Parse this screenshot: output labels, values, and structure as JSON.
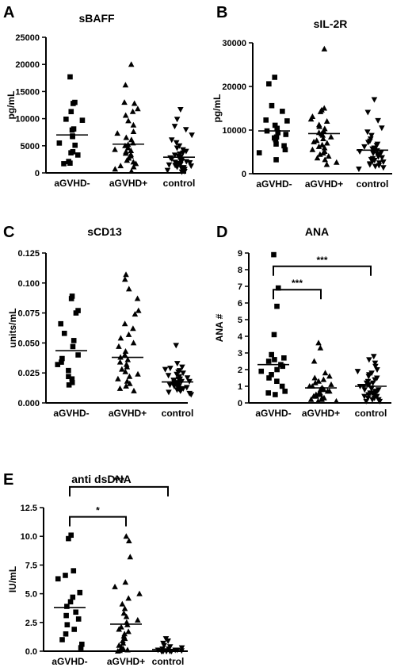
{
  "chart_data": [
    {
      "type": "scatter",
      "panel_label": "A",
      "title": "sBAFF",
      "ylabel": "pg/mL",
      "ylim": [
        0,
        25000
      ],
      "yticks": [
        0,
        5000,
        10000,
        15000,
        20000,
        25000
      ],
      "ytick_labels": [
        "0",
        "5000",
        "10000",
        "15000",
        "20000",
        "25000"
      ],
      "categories": [
        "aGVHD-",
        "aGVHD+",
        "control"
      ],
      "markers": [
        "square",
        "triangle-up",
        "triangle-down"
      ],
      "means": [
        7000,
        5300,
        2900
      ],
      "points": [
        [
          17700,
          13000,
          12800,
          11300,
          9900,
          9700,
          8100,
          7900,
          6800,
          6700,
          5500,
          5100,
          3900,
          3700,
          3300,
          2100,
          1800,
          1700
        ],
        [
          20000,
          16200,
          13000,
          12800,
          11800,
          11300,
          10600,
          9600,
          8800,
          7600,
          7300,
          6500,
          6100,
          5500,
          5200,
          5000,
          4600,
          4300,
          4100,
          3900,
          3600,
          3400,
          3100,
          2700,
          2300,
          2000,
          1700,
          1300,
          1100,
          700,
          300
        ],
        [
          11700,
          9900,
          8600,
          8000,
          7000,
          6100,
          5600,
          5000,
          4600,
          4300,
          4000,
          3700,
          3500,
          3300,
          3100,
          3000,
          2800,
          2600,
          2500,
          2400,
          2200,
          2100,
          2000,
          1900,
          1800,
          1700,
          1600,
          1500,
          1400,
          1300,
          1100,
          1000,
          900,
          700,
          500,
          300,
          200
        ]
      ]
    },
    {
      "type": "scatter",
      "panel_label": "B",
      "title": "sIL-2R",
      "ylabel": "pg/mL",
      "ylim": [
        0,
        30000
      ],
      "yticks": [
        0,
        10000,
        20000,
        30000
      ],
      "ytick_labels": [
        "0",
        "10000",
        "20000",
        "30000"
      ],
      "categories": [
        "aGVHD-",
        "aGVHD+",
        "control"
      ],
      "markers": [
        "square",
        "triangle-up",
        "triangle-down"
      ],
      "means": [
        9800,
        9200,
        5400
      ],
      "points": [
        [
          22100,
          20600,
          15600,
          14300,
          12300,
          12100,
          11100,
          10400,
          9800,
          9400,
          9000,
          8400,
          8200,
          7800,
          6800,
          6400,
          5500,
          4800,
          3200
        ],
        [
          28600,
          15000,
          14600,
          14200,
          13100,
          12500,
          12000,
          11200,
          10800,
          10300,
          9800,
          9400,
          9100,
          8800,
          8400,
          8000,
          7600,
          7300,
          7000,
          6600,
          6200,
          5900,
          5500,
          5100,
          4700,
          4400,
          4000,
          3600,
          3200,
          2600,
          2100
        ],
        [
          17000,
          14100,
          12200,
          10500,
          9600,
          8800,
          8000,
          7500,
          7200,
          6800,
          6500,
          6200,
          5900,
          5700,
          5500,
          5300,
          5100,
          4900,
          4700,
          4500,
          4300,
          4100,
          3900,
          3700,
          3500,
          3300,
          3100,
          2900,
          2700,
          2500,
          2300,
          2100,
          1900,
          1700,
          1400,
          1100
        ]
      ]
    },
    {
      "type": "scatter",
      "panel_label": "C",
      "title": "sCD13",
      "ylabel": "units/mL",
      "ylim": [
        0,
        0.125
      ],
      "yticks": [
        0,
        0.025,
        0.05,
        0.075,
        0.1,
        0.125
      ],
      "ytick_labels": [
        "0.000",
        "0.025",
        "0.050",
        "0.075",
        "0.100",
        "0.125"
      ],
      "categories": [
        "aGVHD-",
        "aGVHD+",
        "control"
      ],
      "markers": [
        "square",
        "triangle-up",
        "triangle-down"
      ],
      "means": [
        0.0435,
        0.038,
        0.0175
      ],
      "points": [
        [
          0.089,
          0.087,
          0.077,
          0.075,
          0.066,
          0.058,
          0.052,
          0.047,
          0.04,
          0.037,
          0.034,
          0.032,
          0.027,
          0.022,
          0.02,
          0.017,
          0.015
        ],
        [
          0.107,
          0.103,
          0.095,
          0.087,
          0.077,
          0.074,
          0.066,
          0.062,
          0.057,
          0.054,
          0.05,
          0.047,
          0.043,
          0.04,
          0.038,
          0.036,
          0.034,
          0.032,
          0.03,
          0.028,
          0.026,
          0.024,
          0.022,
          0.02,
          0.018,
          0.016,
          0.014,
          0.012,
          0.01
        ],
        [
          0.048,
          0.033,
          0.03,
          0.029,
          0.028,
          0.027,
          0.026,
          0.025,
          0.024,
          0.023,
          0.022,
          0.021,
          0.02,
          0.02,
          0.019,
          0.019,
          0.018,
          0.018,
          0.017,
          0.017,
          0.016,
          0.016,
          0.015,
          0.015,
          0.014,
          0.014,
          0.013,
          0.013,
          0.012,
          0.012,
          0.011,
          0.011,
          0.01,
          0.009,
          0.008,
          0.007
        ]
      ]
    },
    {
      "type": "scatter",
      "panel_label": "D",
      "title": "ANA",
      "ylabel": "ANA #",
      "ylim": [
        0,
        9
      ],
      "yticks": [
        0,
        1,
        2,
        3,
        4,
        5,
        6,
        7,
        8,
        9
      ],
      "ytick_labels": [
        "0",
        "1",
        "2",
        "3",
        "4",
        "5",
        "6",
        "7",
        "8",
        "9"
      ],
      "categories": [
        "aGVHD-",
        "aGVHD+",
        "control"
      ],
      "markers": [
        "square",
        "triangle-up",
        "triangle-down"
      ],
      "means": [
        2.3,
        0.9,
        1.0
      ],
      "points": [
        [
          8.9,
          6.9,
          5.8,
          4.1,
          2.9,
          2.7,
          2.6,
          2.5,
          2.3,
          2.2,
          2.0,
          1.9,
          1.7,
          1.5,
          1.3,
          1.0,
          0.7,
          0.6,
          0.5
        ],
        [
          3.6,
          3.3,
          2.5,
          1.8,
          1.6,
          1.5,
          1.4,
          1.3,
          1.2,
          1.1,
          1.0,
          1.0,
          0.9,
          0.9,
          0.8,
          0.8,
          0.7,
          0.7,
          0.6,
          0.6,
          0.5,
          0.5,
          0.4,
          0.4,
          0.3,
          0.3,
          0.2,
          0.2,
          0.1,
          0.1
        ],
        [
          2.8,
          2.6,
          2.4,
          2.2,
          2.0,
          1.9,
          1.8,
          1.7,
          1.6,
          1.5,
          1.4,
          1.3,
          1.2,
          1.2,
          1.1,
          1.1,
          1.0,
          1.0,
          0.9,
          0.9,
          0.8,
          0.8,
          0.7,
          0.7,
          0.6,
          0.6,
          0.5,
          0.5,
          0.4,
          0.4,
          0.3,
          0.3,
          0.2,
          0.2,
          0.1,
          0.1
        ]
      ],
      "annotations": [
        {
          "from": 0,
          "to": 2,
          "text": "***",
          "level": 8.2
        },
        {
          "from": 0,
          "to": 1,
          "text": "***",
          "level": 6.8
        }
      ]
    },
    {
      "type": "scatter",
      "panel_label": "E",
      "title": "anti dsDNA",
      "ylabel": "IU/mL",
      "ylim": [
        0,
        12.5
      ],
      "yticks": [
        0,
        2.5,
        5,
        7.5,
        10,
        12.5
      ],
      "ytick_labels": [
        "0.0",
        "2.5",
        "5.0",
        "7.5",
        "10.0",
        "12.5"
      ],
      "categories": [
        "aGVHD-",
        "aGVHD+",
        "control"
      ],
      "markers": [
        "square",
        "triangle-up",
        "triangle-down"
      ],
      "means": [
        3.8,
        2.35,
        0.15
      ],
      "points": [
        [
          10.1,
          9.8,
          7.0,
          6.6,
          6.3,
          5.1,
          4.7,
          4.3,
          3.9,
          3.4,
          3.1,
          2.8,
          2.3,
          1.9,
          1.5,
          1.0,
          0.6,
          0.3
        ],
        [
          10.0,
          9.6,
          8.2,
          6.0,
          5.6,
          5.0,
          4.6,
          4.1,
          3.7,
          3.3,
          3.0,
          2.7,
          2.5,
          2.3,
          2.1,
          1.9,
          1.7,
          1.5,
          1.3,
          1.1,
          0.9,
          0.7,
          0.5,
          0.3,
          0.2,
          0.1,
          0.05,
          0.0
        ],
        [
          1.1,
          0.9,
          0.7,
          0.5,
          0.4,
          0.3,
          0.2,
          0.2,
          0.1,
          0.1,
          0.1,
          0.05,
          0.05,
          0.0,
          0.0,
          0.0,
          0.0,
          0.0,
          0.0,
          0.0,
          0.0,
          0.0
        ]
      ],
      "annotations": [
        {
          "from": 0,
          "to": 2,
          "text": "***",
          "level": 14.3
        },
        {
          "from": 0,
          "to": 1,
          "text": "*",
          "level": 11.7
        }
      ]
    }
  ]
}
